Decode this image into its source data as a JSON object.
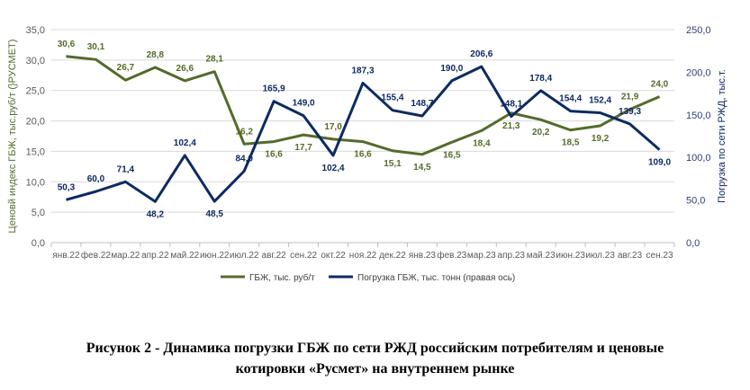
{
  "chart_data": {
    "type": "line",
    "categories": [
      "янв.22",
      "фев.22",
      "мар.22",
      "апр.22",
      "май.22",
      "июн.22",
      "июл.22",
      "авг.22",
      "сен.22",
      "окт.22",
      "ноя.22",
      "дек.22",
      "янв.23",
      "фев.23",
      "мар.23",
      "апр.23",
      "май.23",
      "июн.23",
      "июл.23",
      "авг.23",
      "сен.23"
    ],
    "series": [
      {
        "name": "ГБЖ, тыс. руб/т",
        "axis": "left",
        "color": "#546b2a",
        "values": [
          30.6,
          30.1,
          26.7,
          28.8,
          26.6,
          28.1,
          16.2,
          16.6,
          17.7,
          17.0,
          16.6,
          15.1,
          14.5,
          16.5,
          18.4,
          21.3,
          20.2,
          18.5,
          19.2,
          21.9,
          24.0
        ],
        "labels": [
          "30,6",
          "30,1",
          "26,7",
          "28,8",
          "26,6",
          "28,1",
          "16,2",
          "16,6",
          "17,7",
          "17,0",
          "16,6",
          "15,1",
          "14,5",
          "16,5",
          "18,4",
          "21,3",
          "20,2",
          "18,5",
          "19,2",
          "21,9",
          "24,0"
        ]
      },
      {
        "name": "Погрузка ГБЖ,  тыс. тонн (правая ось)",
        "axis": "right",
        "color": "#0d2a63",
        "values": [
          50.3,
          60.0,
          71.4,
          48.2,
          102.4,
          48.5,
          84.0,
          165.9,
          149.0,
          102.4,
          187.3,
          155.4,
          148.7,
          190.0,
          206.6,
          148.1,
          178.4,
          154.4,
          152.4,
          139.3,
          109.0
        ],
        "labels": [
          "50,3",
          "60,0",
          "71,4",
          "48,2",
          "102,4",
          "48,5",
          "84,0",
          "165,9",
          "149,0",
          "102,4",
          "187,3",
          "155,4",
          "148,7",
          "190,0",
          "206,6",
          "148,1",
          "178,4",
          "154,4",
          "152,4",
          "139,3",
          "109,0"
        ]
      }
    ],
    "ylabel": "Ценовй индекс ГБЖ, тыс.руб/т (}РУСМЕТ)",
    "y2label": "Погрузка по сети РЖД, тыс.т.",
    "ylim": [
      0,
      35
    ],
    "y2lim": [
      0,
      250
    ],
    "yticks": [
      "0,0",
      "5,0",
      "10,0",
      "15,0",
      "20,0",
      "25,0",
      "30,0",
      "35,0"
    ],
    "y2ticks": [
      "0,0",
      "50,0",
      "100,0",
      "150,0",
      "200,0",
      "250,0"
    ],
    "grid": true,
    "legend": "bottom"
  },
  "caption": {
    "line1": "Рисунок 2 - Динамика погрузки ГБЖ по сети РЖД российским потребителям и ценовые",
    "line2": "котировки «Русмет» на внутреннем рынке"
  }
}
